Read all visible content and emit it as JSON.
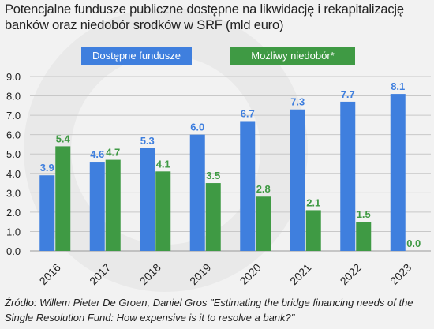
{
  "title": "Potencjalne fundusze publiczne dostępne na likwidację i rekapitalizację banków oraz niedobór srodków w SRF (mld euro)",
  "source": "Źródło: Willem Pieter De Groen, Daniel Gros \"Estimating the bridge financing needs of the Single Resolution Fund: How expensive is it to resolve a bank?\"",
  "colors": {
    "available": "#3f7fde",
    "shortfall": "#3f9a44",
    "value_label_blue": "#3f7fde",
    "value_label_green": "#3f9a44"
  },
  "chart_data": {
    "type": "bar",
    "title": "Potencjalne fundusze publiczne dostępne na likwidację i rekapitalizację banków oraz niedobór srodków w SRF (mld euro)",
    "categories": [
      "2016",
      "2017",
      "2018",
      "2019",
      "2020",
      "2021",
      "2022",
      "2023"
    ],
    "series": [
      {
        "name": "Dostępne fundusze",
        "values": [
          3.9,
          4.6,
          5.3,
          6.0,
          6.7,
          7.3,
          7.7,
          8.1
        ]
      },
      {
        "name": "Możliwy niedobór*",
        "values": [
          5.4,
          4.7,
          4.1,
          3.5,
          2.8,
          2.1,
          1.5,
          0.0
        ]
      }
    ],
    "value_labels": {
      "Dostępne fundusze": [
        "3.9",
        "4.6",
        "5.3",
        "6.0",
        "6.7",
        "7.3",
        "7.7",
        "8.1"
      ],
      "Możliwy niedobór*": [
        "5.4",
        "4.7",
        "4.1",
        "3.5",
        "2.8",
        "2.1",
        "1.5",
        "0.0"
      ]
    },
    "yticks": [
      "0.0",
      "1.0",
      "2.0",
      "3.0",
      "4.0",
      "5.0",
      "6.0",
      "7.0",
      "8.0",
      "9.0"
    ],
    "ylim": [
      0,
      9
    ],
    "xlabel": "",
    "ylabel": "",
    "legend": "top",
    "grid": true
  }
}
